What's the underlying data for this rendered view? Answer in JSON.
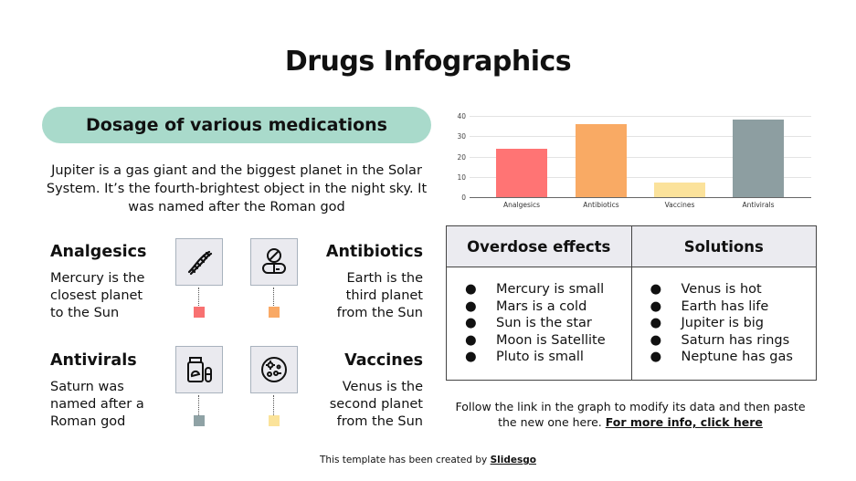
{
  "title": "Drugs Infographics",
  "section_pill": "Dosage of various medications",
  "intro": "Jupiter is a gas giant and the biggest planet in the Solar System. It’s the fourth-brightest object in the night sky. It was named after the Roman god",
  "categories": [
    {
      "name": "Analgesics",
      "text_lines": [
        "Mercury is the",
        "closest planet",
        "to the Sun"
      ],
      "icon": "dna-icon",
      "color": "#f87171"
    },
    {
      "name": "Antibiotics",
      "text_lines": [
        "Earth is the",
        "third planet",
        "from the Sun"
      ],
      "icon": "pills-icon",
      "color": "#f9a965"
    },
    {
      "name": "Antivirals",
      "text_lines": [
        "Saturn was",
        "named after a",
        "Roman god"
      ],
      "icon": "medicine-bottle-icon",
      "color": "#8fa2a5"
    },
    {
      "name": "Vaccines",
      "text_lines": [
        "Venus is the",
        "second planet",
        "from the Sun"
      ],
      "icon": "petri-dish-icon",
      "color": "#fbe39a"
    }
  ],
  "chart_data": {
    "type": "bar",
    "title": "",
    "xlabel": "",
    "ylabel": "",
    "categories": [
      "Analgesics",
      "Antibiotics",
      "Vaccines",
      "Antivirals"
    ],
    "values": [
      24,
      36,
      7,
      38
    ],
    "colors": [
      "#ff7474",
      "#f9aa64",
      "#fbe29b",
      "#8d9ea1"
    ],
    "ylim": [
      0,
      40
    ],
    "yticks": [
      "40",
      "30",
      "20",
      "10",
      "0"
    ],
    "grid": true,
    "legend": "none"
  },
  "table": {
    "headers": [
      "Overdose effects",
      "Solutions"
    ],
    "overdose_effects": [
      "Mercury is small",
      "Mars is a cold",
      "Sun is the  star",
      "Moon is Satellite",
      "Pluto is small"
    ],
    "solutions": [
      "Venus is hot",
      "Earth has life",
      "Jupiter is big",
      "Saturn has rings",
      "Neptune has gas"
    ],
    "bullet": "●"
  },
  "note": {
    "text": "Follow the link in the graph to modify its data and then paste the new one here. ",
    "link": "For more info, click here"
  },
  "credit": {
    "text": "This template has been created by ",
    "link": "Slidesgo"
  }
}
